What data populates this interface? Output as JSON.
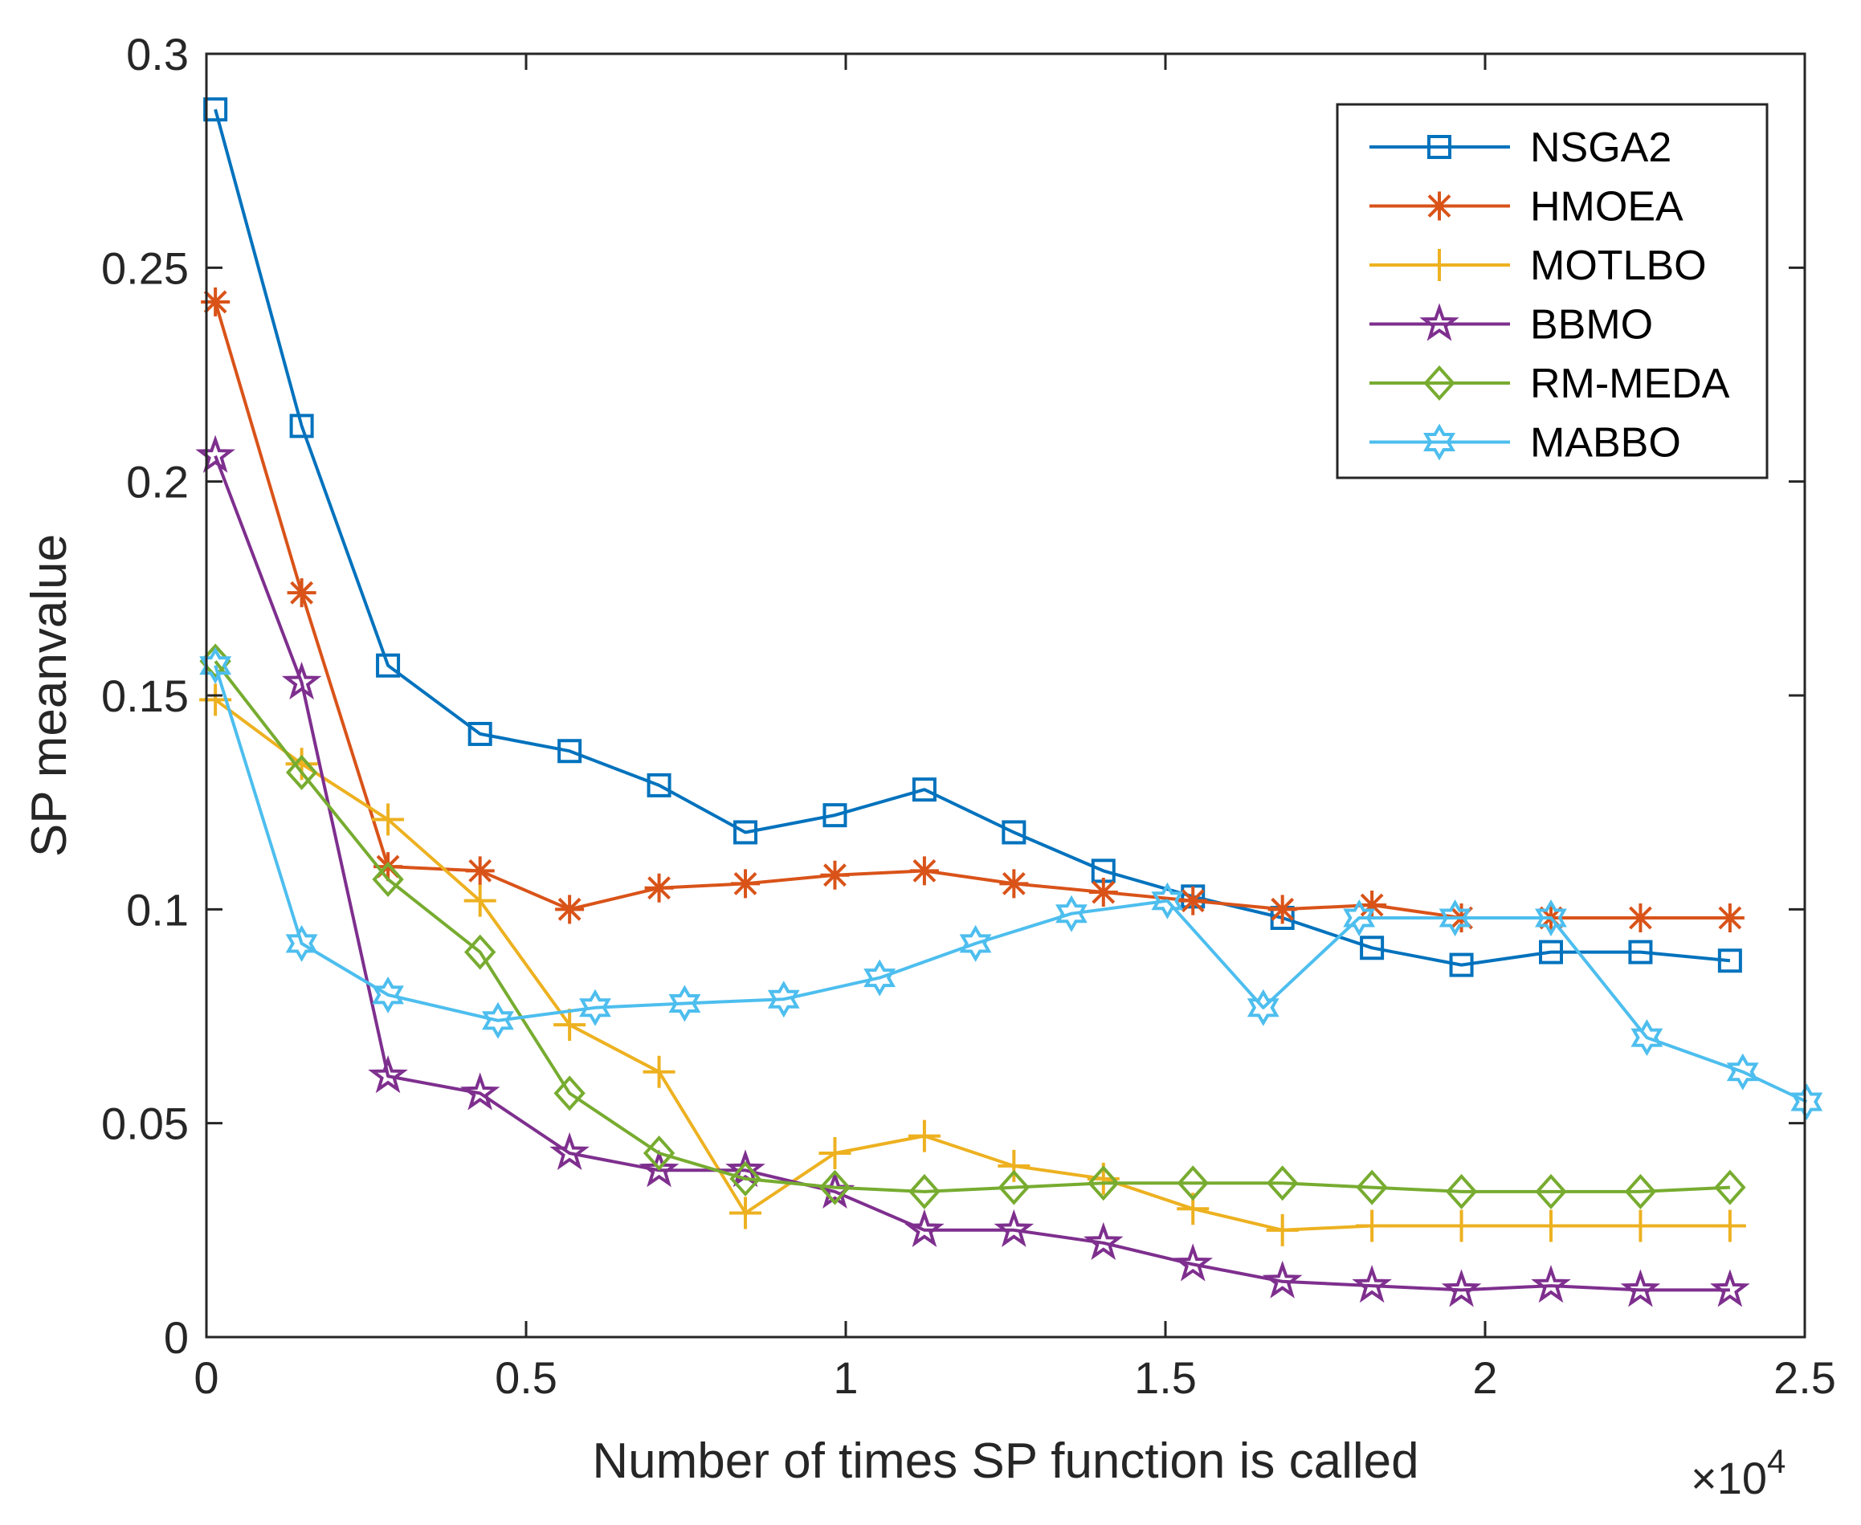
{
  "chart_data": {
    "type": "line",
    "title": "",
    "xlabel": "Number of times SP function is called",
    "ylabel": "SP meanvalue",
    "x_multiplier_label": {
      "base": "×10",
      "exponent": "4"
    },
    "xlim": [
      0,
      2.5
    ],
    "ylim": [
      0,
      0.3
    ],
    "xticks": [
      0,
      0.5,
      1,
      1.5,
      2,
      2.5
    ],
    "xtick_labels": [
      "0",
      "0.5",
      "1",
      "1.5",
      "2",
      "2.5"
    ],
    "yticks": [
      0,
      0.05,
      0.1,
      0.15,
      0.2,
      0.25,
      0.3
    ],
    "ytick_labels": [
      "0",
      "0.05",
      "0.1",
      "0.15",
      "0.2",
      "0.25",
      "0.3"
    ],
    "legend_position": "top-right",
    "series": [
      {
        "name": "NSGA2",
        "color": "#0072BD",
        "marker": "square",
        "x": [
          0.014,
          0.149,
          0.284,
          0.428,
          0.568,
          0.708,
          0.843,
          0.983,
          1.123,
          1.263,
          1.403,
          1.543,
          1.683,
          1.823,
          1.963,
          2.103,
          2.243,
          2.383
        ],
        "y": [
          0.287,
          0.213,
          0.157,
          0.141,
          0.137,
          0.129,
          0.118,
          0.122,
          0.128,
          0.118,
          0.109,
          0.103,
          0.098,
          0.091,
          0.087,
          0.09,
          0.09,
          0.088
        ]
      },
      {
        "name": "HMOEA",
        "color": "#D95319",
        "marker": "asterisk",
        "x": [
          0.014,
          0.149,
          0.284,
          0.428,
          0.568,
          0.708,
          0.843,
          0.983,
          1.123,
          1.263,
          1.403,
          1.543,
          1.683,
          1.823,
          1.963,
          2.103,
          2.243,
          2.383
        ],
        "y": [
          0.242,
          0.174,
          0.11,
          0.109,
          0.1,
          0.105,
          0.106,
          0.108,
          0.109,
          0.106,
          0.104,
          0.102,
          0.1,
          0.101,
          0.098,
          0.098,
          0.098,
          0.098
        ]
      },
      {
        "name": "MOTLBO",
        "color": "#EDB120",
        "marker": "plus",
        "x": [
          0.014,
          0.149,
          0.284,
          0.428,
          0.568,
          0.708,
          0.843,
          0.983,
          1.123,
          1.263,
          1.403,
          1.543,
          1.683,
          1.823,
          1.963,
          2.103,
          2.243,
          2.383
        ],
        "y": [
          0.149,
          0.134,
          0.121,
          0.102,
          0.073,
          0.062,
          0.029,
          0.043,
          0.047,
          0.04,
          0.037,
          0.03,
          0.025,
          0.026,
          0.026,
          0.026,
          0.026,
          0.026
        ]
      },
      {
        "name": "BBMO",
        "color": "#7E2F8E",
        "marker": "pentagram",
        "x": [
          0.014,
          0.149,
          0.284,
          0.428,
          0.568,
          0.708,
          0.843,
          0.983,
          1.123,
          1.263,
          1.403,
          1.543,
          1.683,
          1.823,
          1.963,
          2.103,
          2.243,
          2.383
        ],
        "y": [
          0.206,
          0.153,
          0.061,
          0.057,
          0.043,
          0.039,
          0.039,
          0.034,
          0.025,
          0.025,
          0.022,
          0.017,
          0.013,
          0.012,
          0.011,
          0.012,
          0.011,
          0.011
        ]
      },
      {
        "name": "RM-MEDA",
        "color": "#77AC30",
        "marker": "diamond",
        "x": [
          0.014,
          0.149,
          0.284,
          0.428,
          0.568,
          0.708,
          0.843,
          0.983,
          1.123,
          1.263,
          1.403,
          1.543,
          1.683,
          1.823,
          1.963,
          2.103,
          2.243,
          2.383
        ],
        "y": [
          0.158,
          0.132,
          0.107,
          0.09,
          0.057,
          0.043,
          0.037,
          0.035,
          0.034,
          0.035,
          0.036,
          0.036,
          0.036,
          0.035,
          0.034,
          0.034,
          0.034,
          0.035
        ]
      },
      {
        "name": "MABBO",
        "color": "#4DBEEE",
        "marker": "hexagram",
        "x": [
          0.014,
          0.149,
          0.284,
          0.456,
          0.608,
          0.748,
          0.903,
          1.053,
          1.203,
          1.353,
          1.503,
          1.653,
          1.803,
          1.953,
          2.103,
          2.253,
          2.403,
          2.503
        ],
        "y": [
          0.157,
          0.092,
          0.08,
          0.074,
          0.077,
          0.078,
          0.079,
          0.084,
          0.092,
          0.099,
          0.102,
          0.077,
          0.098,
          0.098,
          0.098,
          0.07,
          0.062,
          0.055
        ]
      }
    ]
  }
}
